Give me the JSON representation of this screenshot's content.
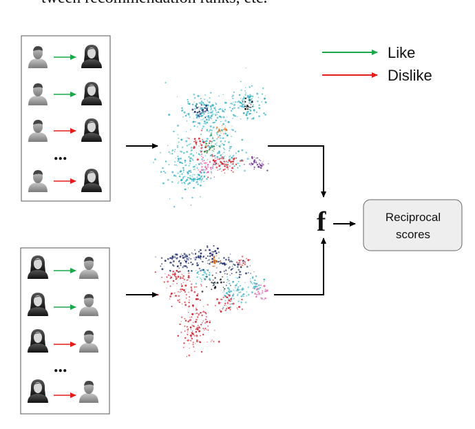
{
  "top_text": "tween recommendation ranks, etc.",
  "legend": {
    "like": {
      "label": "Like",
      "color": "#1aa84a"
    },
    "dislike": {
      "label": "Dislike",
      "color": "#e51c1c"
    }
  },
  "ellipsis": "...",
  "function_symbol": "f",
  "output": {
    "line1": "Reciprocal",
    "line2": "scores"
  },
  "colors": {
    "cyan": "#3bb3c8",
    "navy": "#1f2e6b",
    "red": "#d41f2a",
    "purple": "#6a2b8a",
    "pink": "#e85aa8",
    "green": "#2d8a3e",
    "orange": "#e8731c",
    "black": "#111111",
    "box_fill": "#eeeeee",
    "box_stroke": "#666666"
  },
  "icons": [
    "male-user-icon",
    "female-user-icon"
  ]
}
